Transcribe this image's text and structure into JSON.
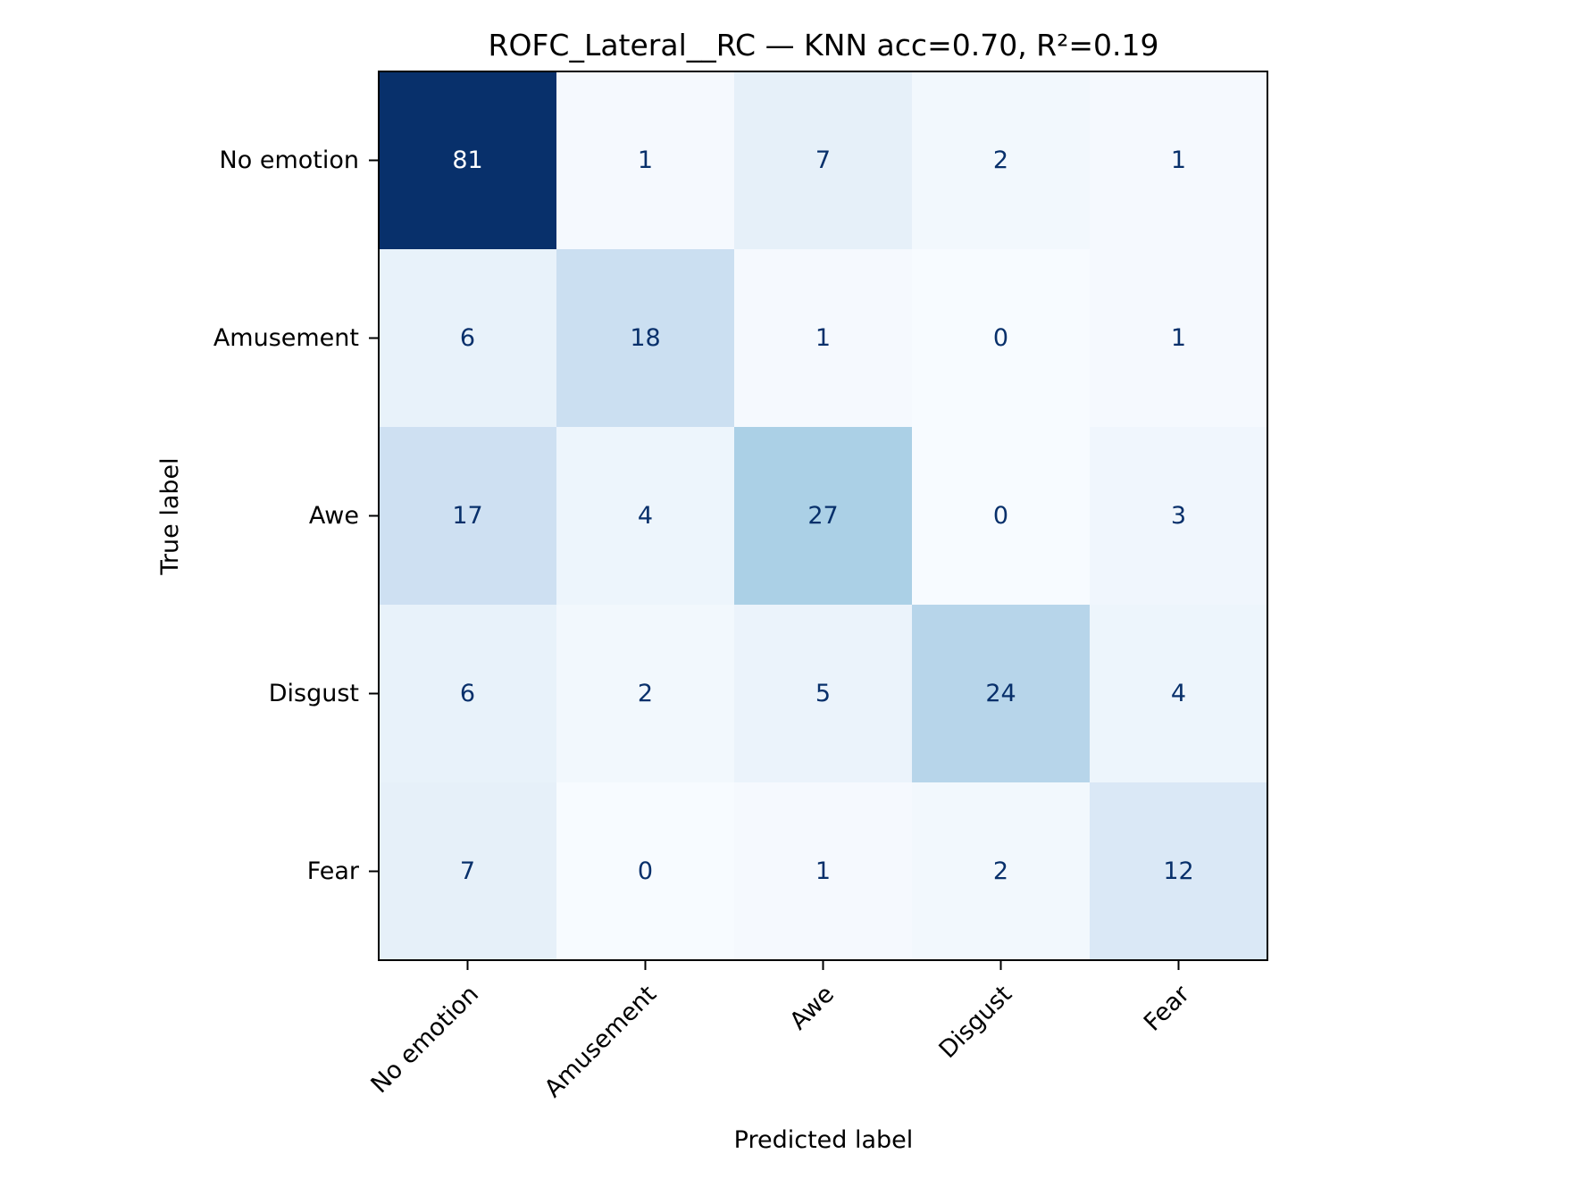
{
  "chart_data": {
    "type": "heatmap",
    "title": "ROFC_Lateral__RC — KNN acc=0.70, R²=0.19",
    "xlabel": "Predicted label",
    "ylabel": "True label",
    "x_categories": [
      "No emotion",
      "Amusement",
      "Awe",
      "Disgust",
      "Fear"
    ],
    "y_categories": [
      "No emotion",
      "Amusement",
      "Awe",
      "Disgust",
      "Fear"
    ],
    "values": [
      [
        81,
        1,
        7,
        2,
        1
      ],
      [
        6,
        18,
        1,
        0,
        1
      ],
      [
        17,
        4,
        27,
        0,
        3
      ],
      [
        6,
        2,
        5,
        24,
        4
      ],
      [
        7,
        0,
        1,
        2,
        12
      ]
    ],
    "colormap": "Blues",
    "vmin": 0,
    "vmax": 81,
    "grid": false,
    "colorbar": false
  }
}
